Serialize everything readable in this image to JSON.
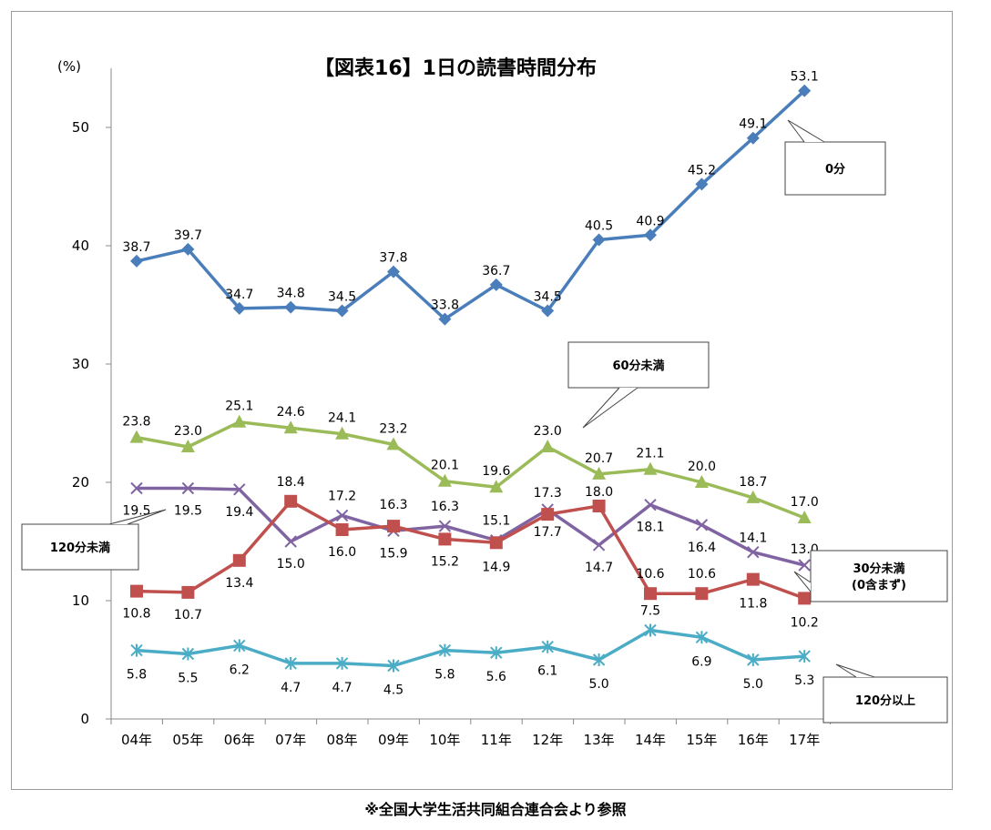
{
  "chart_data": {
    "type": "line",
    "title": "【図表16】1日の読書時間分布",
    "ylabel": "(%)",
    "ylim": [
      0,
      55
    ],
    "yticks": [
      0,
      10,
      20,
      30,
      40,
      50
    ],
    "grid": false,
    "categories": [
      "04年",
      "05年",
      "06年",
      "07年",
      "08年",
      "09年",
      "10年",
      "11年",
      "12年",
      "13年",
      "14年",
      "15年",
      "16年",
      "17年"
    ],
    "series": [
      {
        "name": "0分",
        "color": "#4a7ebb",
        "marker": "diamond",
        "values": [
          38.7,
          39.7,
          34.7,
          34.8,
          34.5,
          37.8,
          33.8,
          36.7,
          34.5,
          40.5,
          40.9,
          45.2,
          49.1,
          53.1
        ]
      },
      {
        "name": "60分未満",
        "color": "#9bbb59",
        "marker": "triangle",
        "values": [
          23.8,
          23.0,
          25.1,
          24.6,
          24.1,
          23.2,
          20.1,
          19.6,
          23.0,
          20.7,
          21.1,
          20.0,
          18.7,
          17.0
        ]
      },
      {
        "name": "120分未満",
        "color": "#8064a2",
        "marker": "x",
        "values": [
          19.5,
          19.5,
          19.4,
          15.0,
          17.2,
          15.9,
          16.3,
          15.1,
          17.7,
          14.7,
          18.1,
          16.4,
          14.1,
          13.0
        ]
      },
      {
        "name": "30分未満\n(0含まず)",
        "color": "#c0504d",
        "marker": "square",
        "values": [
          10.8,
          10.7,
          13.4,
          18.4,
          16.0,
          16.3,
          15.2,
          14.9,
          17.3,
          18.0,
          10.6,
          10.6,
          11.8,
          10.2
        ]
      },
      {
        "name": "120分以上",
        "color": "#4bacc6",
        "marker": "star",
        "values": [
          5.8,
          5.5,
          6.2,
          4.7,
          4.7,
          4.5,
          5.8,
          5.6,
          6.1,
          5.0,
          7.5,
          6.9,
          5.0,
          5.3
        ]
      }
    ],
    "data_labels": {
      "0分": [
        "38.7",
        "39.7",
        "34.7",
        "34.8",
        "34.5",
        "37.8",
        "33.8",
        "36.7",
        "34.5",
        "40.5",
        "40.9",
        "45.2",
        "49.1",
        "53.1"
      ],
      "60分未満": [
        "23.8",
        "23.0",
        "25.1",
        "24.6",
        "24.1",
        "23.2",
        "20.1",
        "19.6",
        "23.0",
        "20.7",
        "21.1",
        "20.0",
        "18.7",
        "17.0"
      ],
      "120分未満": [
        "19.5",
        "19.5",
        "19.4",
        "15.0",
        "17.2",
        "15.9",
        "16.3",
        "15.1",
        "17.7",
        "14.7",
        "18.1",
        "16.4",
        "14.1",
        "13.0"
      ],
      "30分未満": [
        "10.8",
        "10.7",
        "13.4",
        "18.4",
        "16.0",
        "16.3",
        "15.2",
        "14.9",
        "17.3",
        "18.0",
        "10.6",
        "10.6",
        "11.8",
        "10.2"
      ],
      "120分以上": [
        "5.8",
        "5.5",
        "6.2",
        "4.7",
        "4.7",
        "4.5",
        "5.8",
        "5.6",
        "6.1",
        "5.0",
        "7.5",
        "6.9",
        "5.0",
        "5.3"
      ]
    },
    "callouts": [
      {
        "series": "0分",
        "lines": [
          "0分"
        ]
      },
      {
        "series": "60分未満",
        "lines": [
          "60分未満"
        ]
      },
      {
        "series": "120分未満",
        "lines": [
          "120分未満"
        ]
      },
      {
        "series": "30分未満",
        "lines": [
          "30分未満",
          "(0含まず)"
        ]
      },
      {
        "series": "120分以上",
        "lines": [
          "120分以上"
        ]
      }
    ]
  },
  "footer": {
    "source_note": "※全国大学生活共同組合連合会より参照"
  }
}
